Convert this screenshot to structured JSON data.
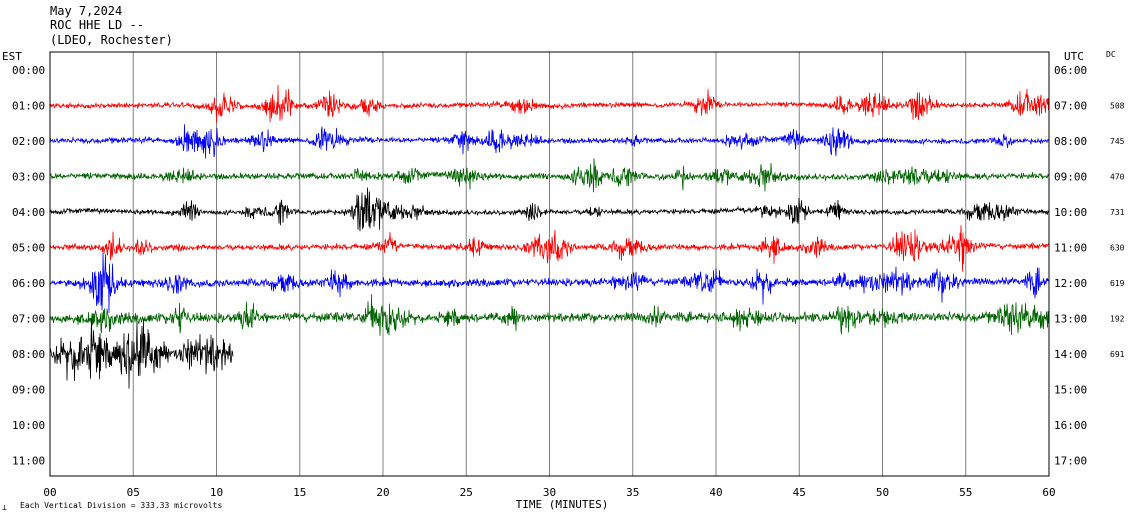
{
  "header": {
    "date": "May 7,2024",
    "station": "ROC HHE LD --",
    "location": "(LDEO, Rochester)"
  },
  "left_axis_label": "EST",
  "right_axis_label": "UTC",
  "dc_label": "DC",
  "footer": {
    "scale_note": "Each Vertical Division =  333.33 microvolts"
  },
  "chart_data": {
    "type": "line",
    "xlabel": "TIME (MINUTES)",
    "xlim": [
      0,
      60
    ],
    "x_ticks": [
      "00",
      "05",
      "10",
      "15",
      "20",
      "25",
      "30",
      "35",
      "40",
      "45",
      "50",
      "55",
      "60"
    ],
    "rows_est": [
      "00:00",
      "01:00",
      "02:00",
      "03:00",
      "04:00",
      "05:00",
      "06:00",
      "07:00",
      "08:00",
      "09:00",
      "10:00",
      "11:00"
    ],
    "rows_utc": [
      "06:00",
      "07:00",
      "08:00",
      "09:00",
      "10:00",
      "11:00",
      "12:00",
      "13:00",
      "14:00",
      "15:00",
      "16:00",
      "17:00"
    ],
    "series": [
      {
        "row": 1,
        "color": "#ff0000",
        "dc": "508",
        "end_minute": 60,
        "amplitude": 1.0
      },
      {
        "row": 2,
        "color": "#0000ff",
        "dc": "745",
        "end_minute": 60,
        "amplitude": 1.1
      },
      {
        "row": 3,
        "color": "#006400",
        "dc": "470",
        "end_minute": 60,
        "amplitude": 1.3
      },
      {
        "row": 4,
        "color": "#000000",
        "dc": "731",
        "end_minute": 60,
        "amplitude": 1.0
      },
      {
        "row": 5,
        "color": "#ff0000",
        "dc": "630",
        "end_minute": 60,
        "amplitude": 1.2
      },
      {
        "row": 6,
        "color": "#0000ff",
        "dc": "619",
        "end_minute": 60,
        "amplitude": 1.6
      },
      {
        "row": 7,
        "color": "#006400",
        "dc": "192",
        "end_minute": 60,
        "amplitude": 2.0
      },
      {
        "row": 8,
        "color": "#000000",
        "dc": "691",
        "end_minute": 11,
        "amplitude": 1.7
      }
    ]
  }
}
